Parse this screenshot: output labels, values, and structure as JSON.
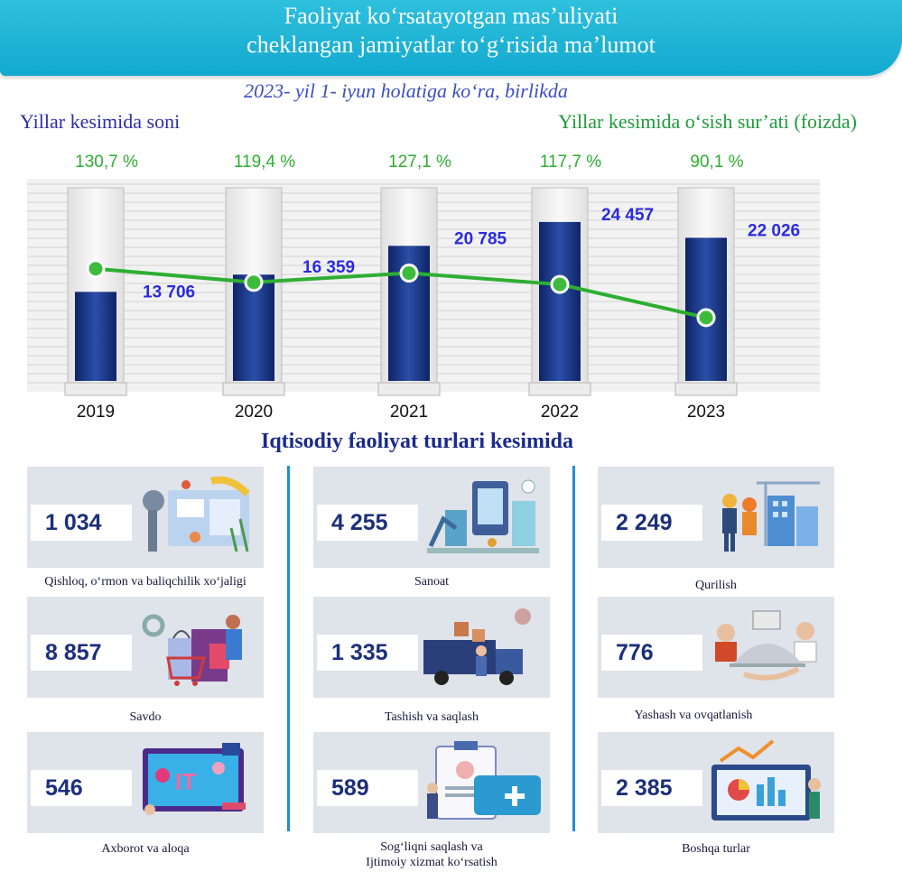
{
  "header": {
    "title_line1": "Faoliyat ko‘rsatayotgan mas’uliyati",
    "title_line2": "cheklangan jamiyatlar to‘g‘risida ma’lumot",
    "subtitle": "2023- yil 1- iyun holatiga ko‘ra, birlikda"
  },
  "chart_headings": {
    "left": "Yillar kesimida soni",
    "right": "Yillar kesimida o‘sish sur’ati (foizda)"
  },
  "chart_data": {
    "type": "bar",
    "title": "Yillar kesimida soni",
    "categories": [
      "2019",
      "2020",
      "2021",
      "2022",
      "2023"
    ],
    "series": [
      {
        "name": "Yillar kesimida soni",
        "type": "bar",
        "values": [
          13706,
          16359,
          20785,
          24457,
          22026
        ],
        "labels": [
          "13 706",
          "16 359",
          "20 785",
          "24 457",
          "22 026"
        ]
      },
      {
        "name": "Yillar kesimida o‘sish sur’ati (foizda)",
        "type": "line",
        "values": [
          130.7,
          119.4,
          127.1,
          117.7,
          90.1
        ],
        "labels": [
          "130,7 %",
          "119,4 %",
          "127,1 %",
          "117,7 %",
          "90,1 %"
        ]
      }
    ],
    "ylim": [
      0,
      30000
    ],
    "y2lim": [
      60,
      150
    ],
    "grid": true
  },
  "section_title": "Iqtisodiy faoliyat turlari kesimida",
  "sectors": [
    {
      "value": "1 034",
      "label_line1": "Qishloq, o‘rmon va baliqchilik xo‘jaligi",
      "label_line2": "",
      "icon": "agriculture-icon"
    },
    {
      "value": "4 255",
      "label_line1": "Sanoat",
      "label_line2": "",
      "icon": "industry-icon"
    },
    {
      "value": "2 249",
      "label_line1": "Qurilish",
      "label_line2": "",
      "icon": "construction-icon"
    },
    {
      "value": "8 857",
      "label_line1": "Savdo",
      "label_line2": "",
      "icon": "shopping-icon"
    },
    {
      "value": "1 335",
      "label_line1": "Tashish va saqlash",
      "label_line2": "",
      "icon": "delivery-truck-icon"
    },
    {
      "value": "776",
      "label_line1": "Yashash va ovqatlanish",
      "label_line2": "",
      "icon": "food-service-icon"
    },
    {
      "value": "546",
      "label_line1": "Axborot va aloqa",
      "label_line2": "",
      "icon": "it-icon"
    },
    {
      "value": "589",
      "label_line1": "Sog‘liqni saqlash va",
      "label_line2": "Ijtimoiy xizmat ko‘rsatish",
      "icon": "health-icon"
    },
    {
      "value": "2 385",
      "label_line1": "Boshqa turlar",
      "label_line2": "",
      "icon": "analytics-icon"
    }
  ],
  "colors": {
    "header": "#1fb5d8",
    "bar": "#1b3a8a",
    "line": "#2eae32",
    "card": "#dfe3ea"
  }
}
